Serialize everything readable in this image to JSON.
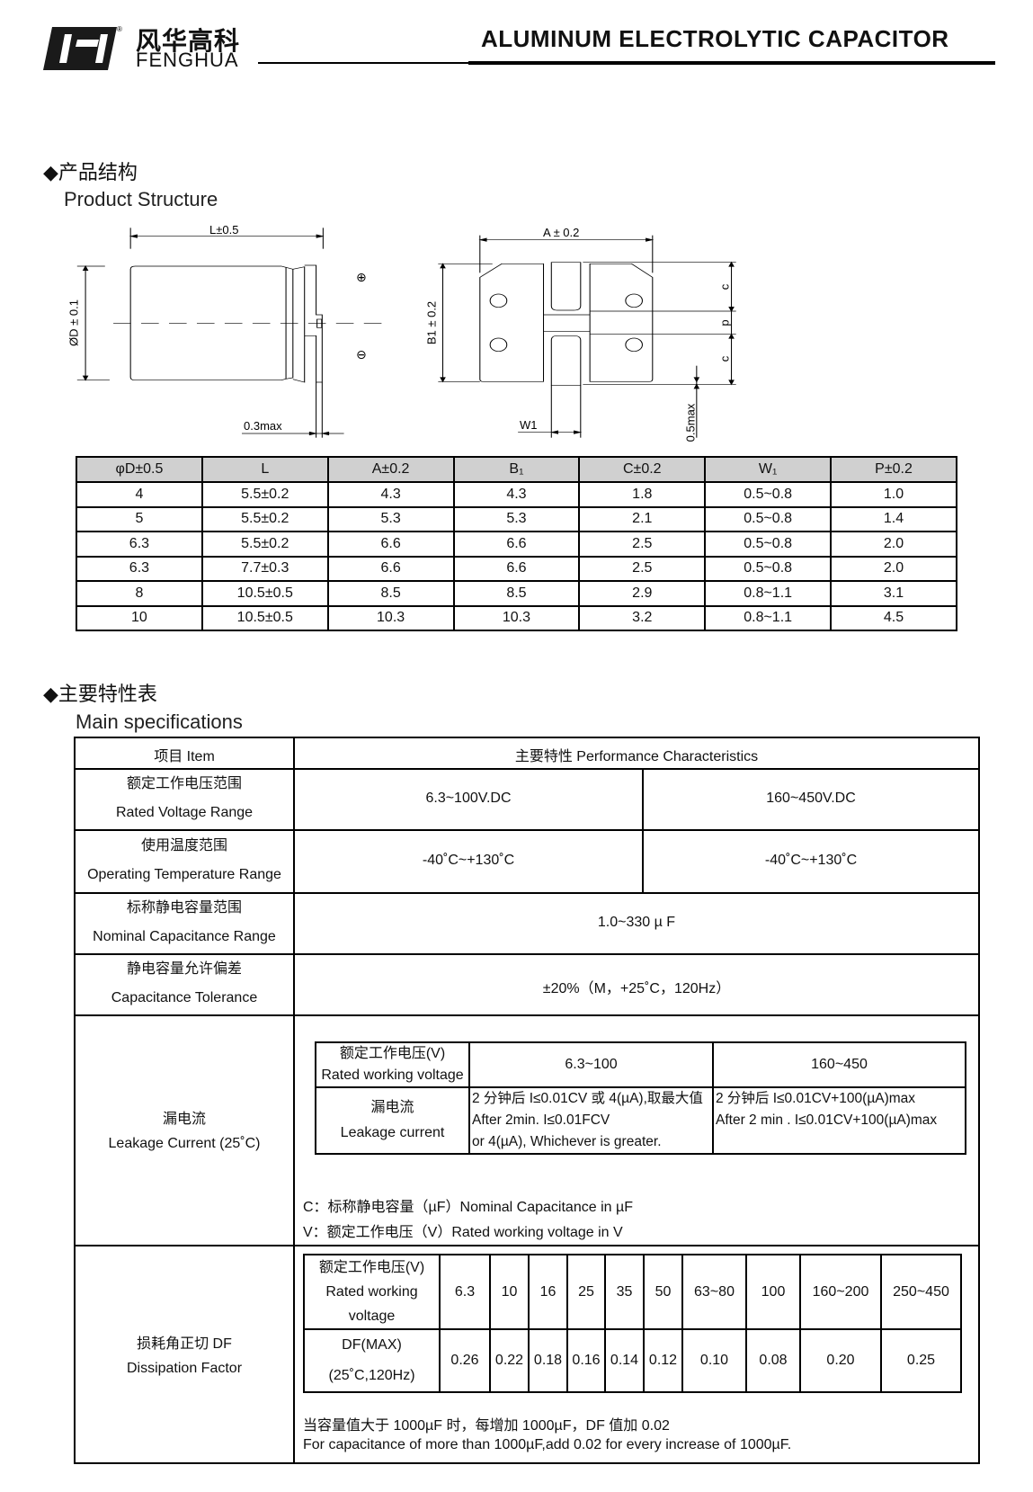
{
  "header": {
    "logo_cn": "风华高科",
    "logo_en": "FENGHUA",
    "registered_mark": "®",
    "title": "ALUMINUM ELECTROLYTIC CAPACITOR"
  },
  "structure": {
    "heading_cn": "◆产品结构",
    "heading_en": "Product Structure",
    "drawing_labels": {
      "L": "L±0.5",
      "D": "ØD ± 0.1",
      "gap": "0.3max",
      "A": "A ± 0.2",
      "B1": "B1 ± 0.2",
      "c": "c",
      "p": "p",
      "W1": "W1",
      "lift": "0.5max",
      "plus": "⊕",
      "minus": "⊖"
    },
    "table": {
      "headers": [
        "φD±0.5",
        "L",
        "A±0.2",
        "B₁",
        "C±0.2",
        "W₁",
        "P±0.2"
      ],
      "rows": [
        [
          "4",
          "5.5±0.2",
          "4.3",
          "4.3",
          "1.8",
          "0.5~0.8",
          "1.0"
        ],
        [
          "5",
          "5.5±0.2",
          "5.3",
          "5.3",
          "2.1",
          "0.5~0.8",
          "1.4"
        ],
        [
          "6.3",
          "5.5±0.2",
          "6.6",
          "6.6",
          "2.5",
          "0.5~0.8",
          "2.0"
        ],
        [
          "6.3",
          "7.7±0.3",
          "6.6",
          "6.6",
          "2.5",
          "0.5~0.8",
          "2.0"
        ],
        [
          "8",
          "10.5±0.5",
          "8.5",
          "8.5",
          "2.9",
          "0.8~1.1",
          "3.1"
        ],
        [
          "10",
          "10.5±0.5",
          "10.3",
          "10.3",
          "3.2",
          "0.8~1.1",
          "4.5"
        ]
      ]
    }
  },
  "specs": {
    "heading_cn": "◆主要特性表",
    "heading_en": "Main specifications",
    "col_item": "项目 Item",
    "col_perf": "主要特性 Performance Characteristics",
    "voltage": {
      "cn": "额定工作电压范围",
      "en": "Rated Voltage Range",
      "low": "6.3~100V.DC",
      "high": "160~450V.DC"
    },
    "temperature": {
      "cn": "使用温度范围",
      "en": "Operating Temperature Range",
      "low": "-40˚C~+130˚C",
      "high": "-40˚C~+130˚C"
    },
    "capacitance": {
      "cn": "标称静电容量范围",
      "en": "Nominal Capacitance Range",
      "value": "1.0~330 µ F"
    },
    "tolerance": {
      "cn": "静电容量允许偏差",
      "en": "Capacitance Tolerance",
      "value": "±20%（M，+25˚C，120Hz）"
    },
    "leakage": {
      "cn": "漏电流",
      "en": "Leakage Current (25˚C)",
      "inner": {
        "voltage_cn": "额定工作电压(V)",
        "voltage_en": "Rated working voltage",
        "range_low": "6.3~100",
        "range_high": "160~450",
        "label_cn": "漏电流",
        "label_en": "Leakage current",
        "low_lines": [
          "2 分钟后 I≤0.01CV 或 4(µA),取最大值",
          "After 2min. I≤0.01FCV",
          "or 4(µA), Whichever is greater."
        ],
        "high_lines": [
          "2 分钟后 I≤0.01CV+100(µA)max",
          "After 2 min . I≤0.01CV+100(µA)max"
        ]
      },
      "note_c": "C：标称静电容量（µF）Nominal Capacitance in µF",
      "note_v": "V：额定工作电压（V）Rated working voltage in V"
    },
    "df": {
      "cn": "损耗角正切 DF",
      "en": "Dissipation Factor",
      "voltage_label": [
        "额定工作电压(V)",
        "Rated working",
        "voltage"
      ],
      "df_label": [
        "DF(MAX)",
        "(25˚C,120Hz)"
      ],
      "voltages": [
        "6.3",
        "10",
        "16",
        "25",
        "35",
        "50",
        "63~80",
        "100",
        "160~200",
        "250~450"
      ],
      "values": [
        "0.26",
        "0.22",
        "0.18",
        "0.16",
        "0.14",
        "0.12",
        "0.10",
        "0.08",
        "0.20",
        "0.25"
      ],
      "note_cn": "当容量值大于 1000µF 时，每增加 1000µF，DF 值加 0.02",
      "note_en": "For capacitance of more than 1000µF,add 0.02 for every increase of 1000µF."
    }
  }
}
